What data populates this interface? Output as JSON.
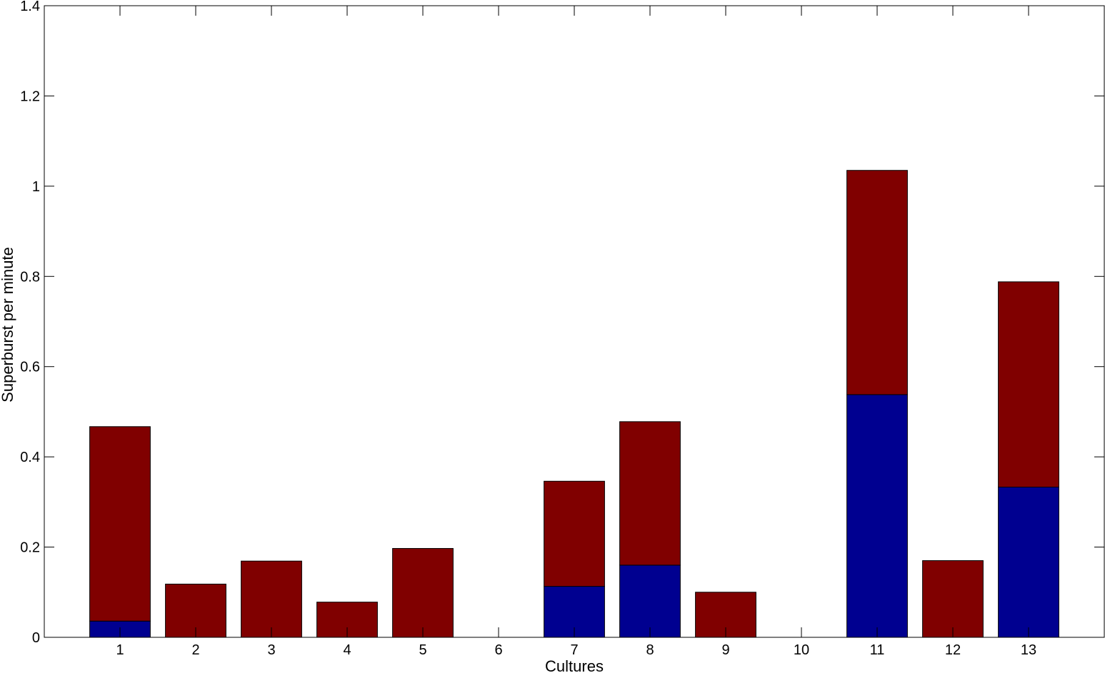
{
  "chart_data": {
    "type": "bar",
    "stacked": true,
    "xlabel": "Cultures",
    "ylabel": "Superburst per minute",
    "ylim": [
      0,
      1.4
    ],
    "yticks": [
      "0",
      "0.2",
      "0.4",
      "0.6",
      "0.8",
      "1",
      "1.2",
      "1.4"
    ],
    "categories": [
      "1",
      "2",
      "3",
      "4",
      "5",
      "6",
      "7",
      "8",
      "9",
      "10",
      "11",
      "12",
      "13"
    ],
    "grid": false,
    "series": [
      {
        "color": "#000090",
        "values": [
          0.036,
          0,
          0,
          0,
          0,
          0,
          0.113,
          0.16,
          0,
          0,
          0.538,
          0,
          0.333
        ]
      },
      {
        "color": "#800000",
        "values": [
          0.431,
          0.118,
          0.169,
          0.078,
          0.197,
          0,
          0.233,
          0.318,
          0.1,
          0,
          0.497,
          0.17,
          0.455
        ]
      }
    ]
  }
}
